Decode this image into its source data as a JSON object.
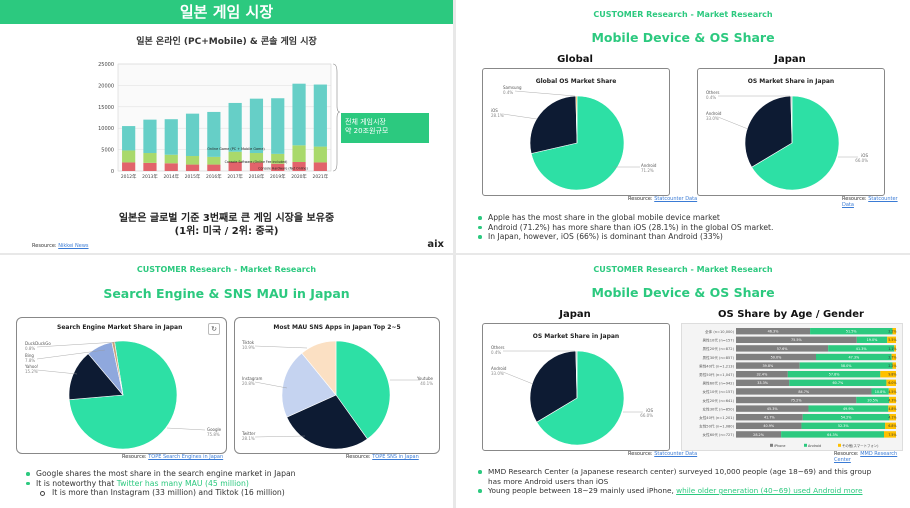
{
  "slide1": {
    "banner": "일본 게임 시장",
    "chart_title": "일본 온라인 (PC+Mobile) & 콘솔 게임 시장",
    "callout": [
      "전체 게임시장",
      "약 20조원규모"
    ],
    "segment_labels": [
      "Online Game (PC + Mobile Game)",
      "Console Software (Online Fee included)",
      "Console Hardware (Net Online)"
    ],
    "caption_line1": "일본은 글로벌 기준 3번째로 큰 게임 시장을 보유중",
    "caption_line2": "(1위: 미국 / 2위: 중국)",
    "resource_label": "Resource:",
    "resource_link": "Nikkei News",
    "logo": "aix",
    "colors": {
      "online": "#66cfc7",
      "software": "#a9d96b",
      "hardware": "#e2636b",
      "accent": "#2cc97f"
    }
  },
  "chart_data": [
    {
      "type": "bar",
      "title": "일본 온라인 (PC+Mobile) & 콘솔 게임 시장",
      "categories": [
        "2012年",
        "2013年",
        "2014年",
        "2015年",
        "2016年",
        "2017年",
        "2018年",
        "2019年",
        "2020年",
        "2021年"
      ],
      "series": [
        {
          "name": "Console Hardware (Net Online)",
          "values": [
            2000,
            1900,
            1800,
            1500,
            1500,
            2100,
            2000,
            1700,
            2100,
            2000
          ]
        },
        {
          "name": "Console Software (Online Fee included)",
          "values": [
            2800,
            2300,
            2000,
            2000,
            1800,
            2400,
            2200,
            2300,
            3900,
            3700
          ]
        },
        {
          "name": "Online Game (PC + Mobile Game)",
          "values": [
            5700,
            7800,
            8300,
            9900,
            10500,
            11400,
            12700,
            13000,
            14400,
            14500
          ]
        }
      ],
      "y_ticks": [
        "0",
        "5000",
        "10000",
        "15000",
        "20000",
        "25000"
      ],
      "ylim": [
        0,
        25000
      ],
      "stacked": true
    },
    {
      "type": "pie",
      "title": "Global OS Market Share",
      "labels": [
        "Android",
        "iOS",
        "Samsung"
      ],
      "values": [
        71.2,
        28.1,
        0.4
      ],
      "value_labels": [
        "71.2%",
        "28.1%",
        "0.4%"
      ],
      "colors": [
        "#2de0a5",
        "#0d1b33",
        "#f5a623"
      ]
    },
    {
      "type": "pie",
      "title": "OS Market Share in Japan",
      "labels": [
        "iOS",
        "Android",
        "Others"
      ],
      "values": [
        66,
        33,
        0.4
      ],
      "value_labels": [
        "66.0%",
        "33.0%",
        "0.4%"
      ],
      "colors": [
        "#2de0a5",
        "#0d1b33",
        "#bbbbbb"
      ]
    },
    {
      "type": "pie",
      "title": "Search Engine Market Share in Japan",
      "labels": [
        "Google",
        "Yahoo!",
        "Bing",
        "DuckDuckGo"
      ],
      "values": [
        75.8,
        15.2,
        7.8,
        0.8
      ],
      "value_labels": [
        "75.8%",
        "15.2%",
        "7.8%",
        "0.8%"
      ],
      "colors": [
        "#2de0a5",
        "#0d1b33",
        "#8fa8dd",
        "#c9a27b"
      ]
    },
    {
      "type": "pie",
      "title": "Most MAU SNS Apps in Japan Top 2~5",
      "labels": [
        "Youtube",
        "Twitter",
        "Instagram",
        "Tiktok"
      ],
      "values": [
        40.1,
        28.1,
        20.8,
        10.9
      ],
      "value_labels": [
        "40.1%",
        "28.1%",
        "20.8%",
        "10.9%"
      ],
      "colors": [
        "#2de0a5",
        "#0d1b33",
        "#c5d3f0",
        "#fbe0c3"
      ]
    },
    {
      "type": "pie",
      "title": "OS Market Share in Japan",
      "labels": [
        "iOS",
        "Android",
        "Others"
      ],
      "values": [
        66,
        33,
        0.4
      ],
      "value_labels": [
        "66.0%",
        "33.0%",
        "0.4%"
      ],
      "colors": [
        "#2de0a5",
        "#0d1b33",
        "#bbbbbb"
      ]
    },
    {
      "type": "bar",
      "title": "OS Share by Age / Gender",
      "orientation": "horizontal",
      "stacked": true,
      "categories": [
        "全体 (n=10,000)",
        "男性10代 (n=157)",
        "男性20代 (n=872)",
        "男性30代 (n=857)",
        "男性40代 (n=1,213)",
        "男性50代 (n=1,047)",
        "男性60代 (n=942)",
        "女性10代 (n=157)",
        "女性20代 (n=641)",
        "女性30代 (n=850)",
        "女性40代 (n=1,201)",
        "女性50代 (n=1,080)",
        "女性60代 (n=727)"
      ],
      "series": [
        {
          "name": "iPhone",
          "values": [
            46.3,
            75.5,
            57.6,
            50.0,
            39.8,
            32.4,
            33.3,
            84.7,
            75.2,
            45.3,
            41.7,
            40.9,
            28.2
          ]
        },
        {
          "name": "Android",
          "values": [
            51.5,
            19.0,
            41.3,
            47.3,
            58.0,
            57.8,
            60.7,
            10.8,
            20.5,
            49.9,
            54.2,
            52.3,
            64.3
          ]
        },
        {
          "name": "その他(スマートフォン)",
          "values": [
            2.2,
            5.5,
            1.1,
            2.7,
            2.2,
            9.8,
            6.0,
            4.5,
            4.3,
            4.8,
            4.1,
            6.8,
            7.5
          ]
        }
      ],
      "value_labels": {
        "iPhone": [
          "46.3%",
          "75.5%",
          "57.6%",
          "50.0%",
          "39.8%",
          "32.4%",
          "33.3%",
          "84.7%",
          "75.2%",
          "45.3%",
          "41.7%",
          "40.9%",
          "28.2%"
        ],
        "Android": [
          "51.5%",
          "19.0%",
          "41.3%",
          "47.3%",
          "58.0%",
          "57.8%",
          "60.7%",
          "10.8%",
          "20.5%",
          "49.9%",
          "54.2%",
          "52.3%",
          "64.3%"
        ],
        "その他(スマートフォン)": [
          "2.2%",
          "5.5%",
          "1.1%",
          "2.7%",
          "2.2%",
          "9.8%",
          "6.0%",
          "4.5%",
          "4.3%",
          "4.8%",
          "4.1%",
          "6.8%",
          "7.5%"
        ]
      },
      "legend": [
        "iPhone",
        "Android",
        "その他(スマートフォン)"
      ],
      "colors": [
        "#7f7f7f",
        "#2cc97f",
        "#ffc000"
      ]
    }
  ],
  "slide2": {
    "kicker": "CUSTOMER Research - Market Research",
    "title": "Mobile Device & OS Share",
    "col_left": "Global",
    "col_right": "Japan",
    "resource_label": "Resource:",
    "resource_link": "Statcounter Data",
    "bullets": [
      "Apple has the most share in the global mobile device market",
      "Android (71.2%) has more share than iOS (28.1%) in the global OS market.",
      "In Japan, however, iOS (66%) is dominant than Android (33%)"
    ]
  },
  "slide3": {
    "kicker": "CUSTOMER Research - Market Research",
    "title": "Search Engine & SNS MAU in Japan",
    "resource_left_label": "Resource:",
    "resource_left_link": "TOPE Search Engines in Japan",
    "resource_right_label": "Resource:",
    "resource_right_link": "TOPE SNS in Japan",
    "bullet1": "Google shares the most share in the search engine market in Japan",
    "bullet2_prefix": "It is noteworthy that ",
    "bullet2_highlight": "Twitter has many MAU (45 million)",
    "sub_bullet": "It is more than Instagram (33 million) and Tiktok (16 million)"
  },
  "slide4": {
    "kicker": "CUSTOMER Research - Market Research",
    "title": "Mobile Device & OS Share",
    "col_left": "Japan",
    "col_right": "OS Share by Age / Gender",
    "resource_label": "Resource:",
    "resource_left_link": "Statcounter Data",
    "resource_right_link": "MMD Research Center",
    "bullet1_line1": "MMD Research Center (a Japanese research center) surveyed 10,000 people (age 18~69) and this group",
    "bullet1_line2": "has more Android users than iOS",
    "bullet2_prefix": "Young people between 18~29 mainly used iPhone, ",
    "bullet2_link": "while older generation (40~69) used Android more"
  }
}
